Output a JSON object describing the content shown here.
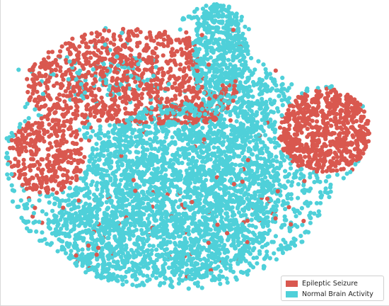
{
  "chart_data": {
    "type": "scatter",
    "title": "",
    "xlabel": "",
    "ylabel": "",
    "grid": false,
    "legend_position": "bottom-right",
    "series": [
      {
        "name": "Epileptic Seizure",
        "color": "#d9584f"
      },
      {
        "name": "Normal Brain Activity",
        "color": "#4fd0d9"
      }
    ],
    "regions": {
      "Normal Brain Activity": "dense central mass extending to the top-center lobe",
      "Epileptic Seizure": "upper-left arc, dense right-side lobe, scattered points inside the central mass"
    }
  }
}
